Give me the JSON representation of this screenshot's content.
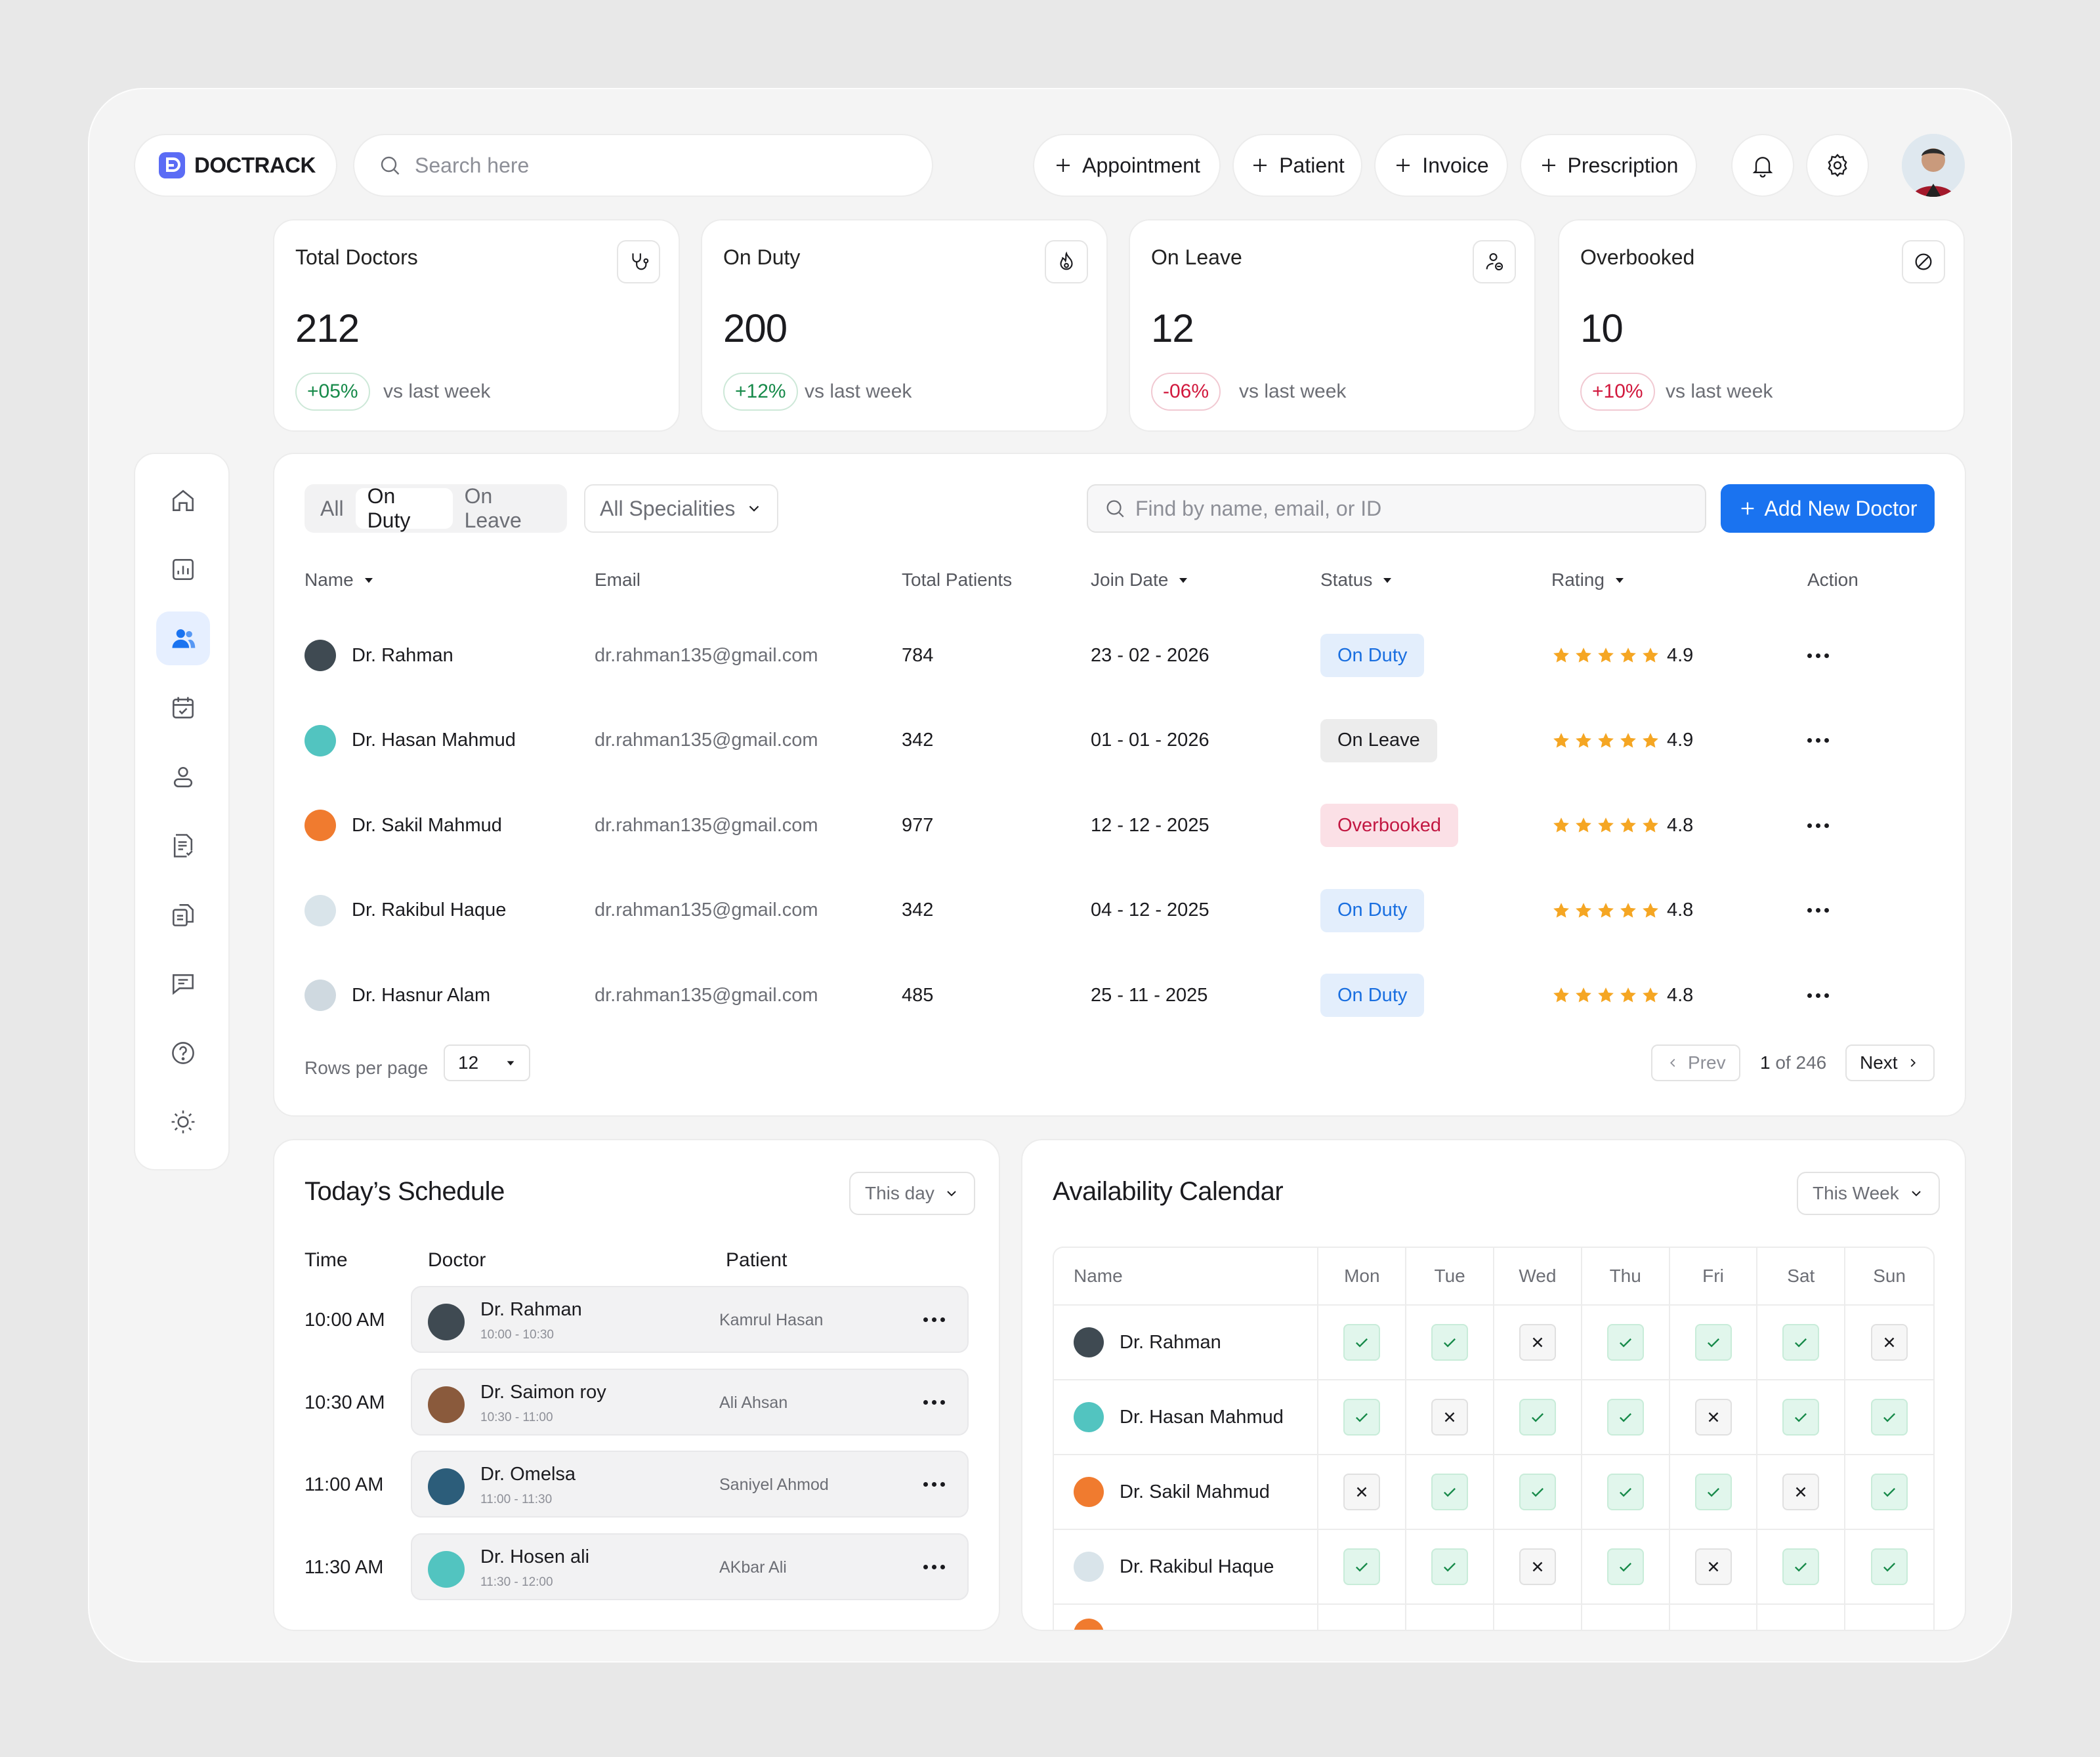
{
  "brand": {
    "name": "DOCTRACK",
    "accent": "#5b6cf5"
  },
  "search": {
    "placeholder": "Search here"
  },
  "quick_actions": [
    {
      "label": "Appointment",
      "icon": "plus-icon"
    },
    {
      "label": "Patient",
      "icon": "plus-icon"
    },
    {
      "label": "Invoice",
      "icon": "plus-icon"
    },
    {
      "label": "Prescription",
      "icon": "plus-icon"
    }
  ],
  "header_icons": [
    "bell-icon",
    "settings-icon",
    "user-avatar"
  ],
  "stats": [
    {
      "label": "Total Doctors",
      "value": "212",
      "change": "+05%",
      "trend": "up",
      "compare": "vs last week",
      "icon": "stethoscope-icon"
    },
    {
      "label": "On Duty",
      "value": "200",
      "change": "+12%",
      "trend": "up",
      "compare": "vs last week",
      "icon": "flame-icon"
    },
    {
      "label": "On Leave",
      "value": "12",
      "change": "-06%",
      "trend": "down",
      "compare": "vs last week",
      "icon": "user-leave-icon"
    },
    {
      "label": "Overbooked",
      "value": "10",
      "change": "+10%",
      "trend": "down",
      "compare": "vs last week",
      "icon": "block-icon"
    }
  ],
  "sidebar": {
    "items": [
      {
        "name": "home-icon",
        "active": false
      },
      {
        "name": "analytics-icon",
        "active": false
      },
      {
        "name": "doctors-icon",
        "active": true
      },
      {
        "name": "calendar-icon",
        "active": false
      },
      {
        "name": "patient-icon",
        "active": false
      },
      {
        "name": "records-icon",
        "active": false
      },
      {
        "name": "documents-icon",
        "active": false
      },
      {
        "name": "messages-icon",
        "active": false
      },
      {
        "name": "help-icon",
        "active": false
      },
      {
        "name": "theme-icon",
        "active": false
      }
    ]
  },
  "doctors": {
    "filters": [
      "All",
      "On Duty",
      "On Leave"
    ],
    "active_filter": "On Duty",
    "speciality": "All Specialities",
    "find_placeholder": "Find by name, email, or ID",
    "add_label": "Add New Doctor",
    "columns": [
      "Name",
      "Email",
      "Total Patients",
      "Join Date",
      "Status",
      "Rating",
      "Action"
    ],
    "rows": [
      {
        "name": "Dr. Rahman",
        "email": "dr.rahman135@gmail.com",
        "patients": "784",
        "join": "23 - 02 - 2026",
        "status": "On Duty",
        "status_kind": "duty",
        "rating": "4.9",
        "stars": 5
      },
      {
        "name": "Dr. Hasan Mahmud",
        "email": "dr.rahman135@gmail.com",
        "patients": "342",
        "join": "01 - 01 - 2026",
        "status": "On Leave",
        "status_kind": "leave",
        "rating": "4.9",
        "stars": 5
      },
      {
        "name": "Dr. Sakil Mahmud",
        "email": "dr.rahman135@gmail.com",
        "patients": "977",
        "join": "12 - 12 - 2025",
        "status": "Overbooked",
        "status_kind": "over",
        "rating": "4.8",
        "stars": 5
      },
      {
        "name": "Dr. Rakibul Haque",
        "email": "dr.rahman135@gmail.com",
        "patients": "342",
        "join": "04 - 12 - 2025",
        "status": "On Duty",
        "status_kind": "duty",
        "rating": "4.8",
        "stars": 5
      },
      {
        "name": "Dr. Hasnur Alam",
        "email": "dr.rahman135@gmail.com",
        "patients": "485",
        "join": "25 - 11 - 2025",
        "status": "On Duty",
        "status_kind": "duty",
        "rating": "4.8",
        "stars": 5
      }
    ],
    "rows_per_page_label": "Rows per page",
    "rows_per_page": "12",
    "prev_label": "Prev",
    "next_label": "Next",
    "page_current": "1",
    "page_total": "of 246"
  },
  "schedule": {
    "title": "Today’s Schedule",
    "range": "This day",
    "columns": [
      "Time",
      "Doctor",
      "Patient"
    ],
    "rows": [
      {
        "time": "10:00 AM",
        "doctor": "Dr. Rahman",
        "slot": "10:00 - 10:30",
        "patient": "Kamrul Hasan"
      },
      {
        "time": "10:30 AM",
        "doctor": "Dr. Saimon roy",
        "slot": "10:30 - 11:00",
        "patient": "Ali Ahsan"
      },
      {
        "time": "11:00 AM",
        "doctor": "Dr. Omelsa",
        "slot": "11:00 - 11:30",
        "patient": "Saniyel Ahmod"
      },
      {
        "time": "11:30 AM",
        "doctor": "Dr. Hosen ali",
        "slot": "11:30 - 12:00",
        "patient": "AKbar Ali"
      }
    ]
  },
  "availability": {
    "title": "Availability Calendar",
    "range": "This Week",
    "name_header": "Name",
    "days": [
      "Mon",
      "Tue",
      "Wed",
      "Thu",
      "Fri",
      "Sat",
      "Sun"
    ],
    "rows": [
      {
        "name": "Dr. Rahman",
        "days": [
          true,
          true,
          false,
          true,
          true,
          true,
          false
        ]
      },
      {
        "name": "Dr. Hasan Mahmud",
        "days": [
          true,
          false,
          true,
          true,
          false,
          true,
          true
        ]
      },
      {
        "name": "Dr. Sakil Mahmud",
        "days": [
          false,
          true,
          true,
          true,
          true,
          false,
          true
        ]
      },
      {
        "name": "Dr. Rakibul Haque",
        "days": [
          true,
          true,
          false,
          true,
          false,
          true,
          true
        ]
      }
    ]
  },
  "colors": {
    "primary": "#1a73f0",
    "success": "#178a4a",
    "danger": "#d1183d",
    "star": "#f5a623"
  }
}
